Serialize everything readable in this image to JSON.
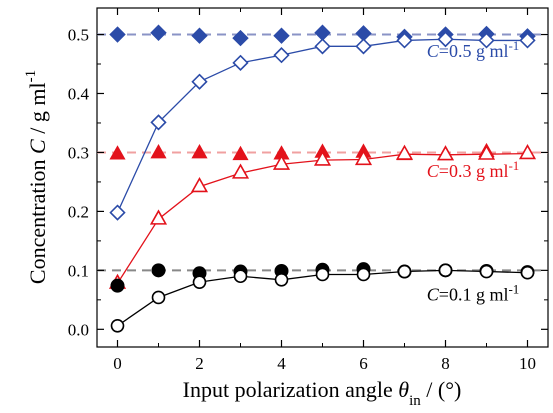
{
  "chart_data": {
    "type": "scatter",
    "xlabel": {
      "pre": "Input polarization angle ",
      "sym": "θ",
      "sub": "in",
      "post": " / (°)"
    },
    "ylabel": {
      "pre": "Concentration ",
      "sym": "C",
      "post": " / g ml",
      "sup": "-1"
    },
    "xlim": [
      -0.5,
      10.5
    ],
    "ylim": [
      -0.03,
      0.545
    ],
    "xticks": [
      0,
      2,
      4,
      6,
      8,
      10
    ],
    "xtick_labels": [
      "0",
      "2",
      "4",
      "6",
      "8",
      "10"
    ],
    "yticks": [
      0.0,
      0.1,
      0.2,
      0.3,
      0.4,
      0.5
    ],
    "ytick_labels": [
      "0.0",
      "0.1",
      "0.2",
      "0.3",
      "0.4",
      "0.5"
    ],
    "grid": false,
    "reference_lines": [
      {
        "y": 0.5,
        "color": "#8a93c6"
      },
      {
        "y": 0.3,
        "color": "#f0a0a0"
      },
      {
        "y": 0.1,
        "color": "#888888"
      }
    ],
    "series": [
      {
        "group": "C=0.5",
        "marker": "diamond",
        "filled": true,
        "color": "#2b4ba8",
        "x": [
          0,
          1,
          2,
          3,
          4,
          5,
          6,
          7,
          8,
          9,
          10
        ],
        "y": [
          0.5,
          0.503,
          0.498,
          0.494,
          0.498,
          0.503,
          0.502,
          0.496,
          0.5,
          0.501,
          0.497
        ]
      },
      {
        "group": "C=0.5",
        "marker": "diamond",
        "filled": false,
        "connected": true,
        "color": "#2b4ba8",
        "x": [
          0,
          1,
          2,
          3,
          4,
          5,
          6,
          7,
          8,
          9,
          10
        ],
        "y": [
          0.198,
          0.351,
          0.42,
          0.452,
          0.465,
          0.48,
          0.48,
          0.49,
          0.492,
          0.49,
          0.49
        ]
      },
      {
        "group": "C=0.3",
        "marker": "triangle",
        "filled": true,
        "color": "#e3121b",
        "x": [
          0,
          1,
          2,
          3,
          4,
          5,
          6,
          7,
          8,
          9,
          10
        ],
        "y": [
          0.297,
          0.299,
          0.299,
          0.296,
          0.297,
          0.3,
          0.3,
          0.296,
          0.296,
          0.301,
          0.298
        ]
      },
      {
        "group": "C=0.3",
        "marker": "triangle",
        "filled": false,
        "connected": true,
        "color": "#e3121b",
        "x": [
          0,
          1,
          2,
          3,
          4,
          5,
          6,
          7,
          8,
          9,
          10
        ],
        "y": [
          0.078,
          0.187,
          0.242,
          0.265,
          0.28,
          0.287,
          0.288,
          0.297,
          0.296,
          0.297,
          0.298
        ]
      },
      {
        "group": "C=0.1",
        "marker": "circle",
        "filled": true,
        "color": "#000000",
        "x": [
          0,
          1,
          2,
          3,
          4,
          5,
          6,
          7,
          8,
          9,
          10
        ],
        "y": [
          0.074,
          0.1,
          0.095,
          0.098,
          0.099,
          0.101,
          0.102,
          0.098,
          0.1,
          0.099,
          0.097
        ]
      },
      {
        "group": "C=0.1",
        "marker": "circle",
        "filled": false,
        "connected": true,
        "color": "#000000",
        "x": [
          0,
          1,
          2,
          3,
          4,
          5,
          6,
          7,
          8,
          9,
          10
        ],
        "y": [
          0.006,
          0.054,
          0.08,
          0.09,
          0.084,
          0.093,
          0.093,
          0.098,
          0.1,
          0.098,
          0.096
        ]
      }
    ],
    "annotations": [
      {
        "pre": "C",
        "mid": "=0.5 g ml",
        "sup": "-1",
        "color": "#2b4ba8",
        "at": [
          9.8,
          0.462
        ]
      },
      {
        "pre": "C",
        "mid": "=0.3 g ml",
        "sup": "-1",
        "color": "#e3121b",
        "at": [
          9.8,
          0.258
        ]
      },
      {
        "pre": "C",
        "mid": "=0.1 g ml",
        "sup": "-1",
        "color": "#000000",
        "at": [
          9.8,
          0.049
        ]
      }
    ]
  }
}
